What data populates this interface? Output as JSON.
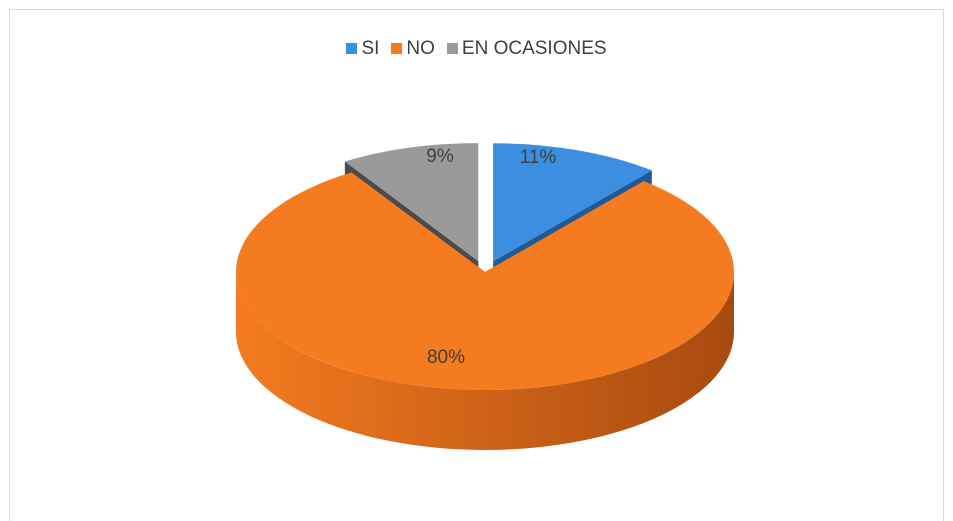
{
  "chart_data": {
    "type": "pie",
    "title": "",
    "categories": [
      "SI",
      "NO",
      "EN OCASIONES"
    ],
    "values": [
      11,
      80,
      9
    ],
    "value_labels": [
      "11%",
      "80%",
      "9%"
    ],
    "colors": [
      "#3c8ee0",
      "#f47b20",
      "#9a9a9a"
    ],
    "side_colors": [
      "#1f5a96",
      "#a84a0f",
      "#4a4a4a"
    ],
    "legend_position": "top",
    "exploded": [
      "SI",
      "EN OCASIONES"
    ],
    "style": "3d"
  }
}
